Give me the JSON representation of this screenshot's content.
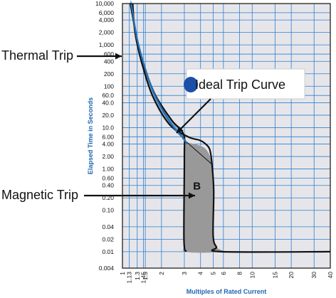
{
  "chart_data": {
    "type": "line",
    "xlabel": "Multiples of Rated Current",
    "ylabel": "Elapsed Time in Seconds",
    "x_scale": "log",
    "y_scale": "log",
    "xlim": [
      1,
      40
    ],
    "ylim": [
      0.004,
      10000
    ],
    "grid": true,
    "x_ticks": [
      {
        "value": 1,
        "label": "1"
      },
      {
        "value": 1.13,
        "label": "1.13"
      },
      {
        "value": 1.3,
        "label": "1.3"
      },
      {
        "value": 1.45,
        "label": "1.45"
      },
      {
        "value": 1.5,
        "label": "1.5"
      },
      {
        "value": 2,
        "label": "2"
      },
      {
        "value": 3,
        "label": "3"
      },
      {
        "value": 4,
        "label": "4"
      },
      {
        "value": 5,
        "label": "5"
      },
      {
        "value": 6,
        "label": "6"
      },
      {
        "value": 8,
        "label": "8"
      },
      {
        "value": 10,
        "label": "10"
      },
      {
        "value": 15,
        "label": "15"
      },
      {
        "value": 20,
        "label": "20"
      },
      {
        "value": 30,
        "label": "30"
      },
      {
        "value": 40,
        "label": "40"
      }
    ],
    "y_ticks": [
      {
        "value": 10000,
        "label": "10,000"
      },
      {
        "value": 6000,
        "label": "6,000"
      },
      {
        "value": 4000,
        "label": "4,000"
      },
      {
        "value": 2000,
        "label": "2,000"
      },
      {
        "value": 1000,
        "label": "1,000"
      },
      {
        "value": 600,
        "label": "600"
      },
      {
        "value": 400,
        "label": "400"
      },
      {
        "value": 200,
        "label": "200"
      },
      {
        "value": 100,
        "label": "100"
      },
      {
        "value": 60,
        "label": "60.0"
      },
      {
        "value": 40,
        "label": "40.0"
      },
      {
        "value": 20,
        "label": "20.0"
      },
      {
        "value": 10,
        "label": "10.0"
      },
      {
        "value": 6,
        "label": "6.00"
      },
      {
        "value": 4,
        "label": "4.00"
      },
      {
        "value": 2,
        "label": "2.00"
      },
      {
        "value": 1,
        "label": "1.00"
      },
      {
        "value": 0.6,
        "label": "0.60"
      },
      {
        "value": 0.4,
        "label": "0.40"
      },
      {
        "value": 0.2,
        "label": "0.20"
      },
      {
        "value": 0.1,
        "label": "0.10"
      },
      {
        "value": 0.04,
        "label": "0.04"
      },
      {
        "value": 0.02,
        "label": "0.02"
      },
      {
        "value": 0.01,
        "label": "0.01"
      },
      {
        "value": 0.004,
        "label": "0.004"
      }
    ],
    "regions": [
      {
        "label": "",
        "fill": "#7aaedc",
        "points": [
          [
            1.2,
            10000
          ],
          [
            1.25,
            2000
          ],
          [
            1.4,
            400
          ],
          [
            1.7,
            60
          ],
          [
            2.3,
            12
          ],
          [
            2.9,
            5.5
          ],
          [
            3.05,
            4.5
          ],
          [
            2.95,
            7
          ],
          [
            2.4,
            15
          ],
          [
            1.8,
            60
          ],
          [
            1.5,
            250
          ],
          [
            1.32,
            1000
          ],
          [
            1.15,
            10000
          ]
        ]
      },
      {
        "label": "B",
        "fill": "#999999",
        "points": [
          [
            3.05,
            4.5
          ],
          [
            4.3,
            3.2
          ],
          [
            4.9,
            1.3
          ],
          [
            5.05,
            0.3
          ],
          [
            5.0,
            0.025
          ],
          [
            5.3,
            0.013
          ],
          [
            5.8,
            0.01
          ],
          [
            3.1,
            0.01
          ],
          [
            2.98,
            0.02
          ],
          [
            3.0,
            2.0
          ]
        ]
      }
    ],
    "boundary_upper": [
      [
        1.2,
        10000
      ],
      [
        1.25,
        2000
      ],
      [
        1.4,
        400
      ],
      [
        1.7,
        60
      ],
      [
        2.3,
        12
      ],
      [
        3.2,
        6
      ],
      [
        3.9,
        5
      ],
      [
        4.3,
        4.2
      ],
      [
        4.7,
        3.0
      ],
      [
        4.9,
        1.3
      ],
      [
        5.05,
        0.3
      ],
      [
        5.0,
        0.025
      ],
      [
        5.3,
        0.013
      ],
      [
        5.8,
        0.01
      ],
      [
        40,
        0.01
      ]
    ],
    "boundary_lower": [
      [
        1.15,
        10000
      ],
      [
        1.32,
        1000
      ],
      [
        1.5,
        250
      ],
      [
        1.8,
        60
      ],
      [
        2.4,
        15
      ],
      [
        2.95,
        7
      ],
      [
        3.0,
        2.0
      ],
      [
        2.98,
        0.02
      ],
      [
        3.1,
        0.01
      ]
    ],
    "series": [
      {
        "name": "Ideal Trip Curve",
        "color": "#2a6db0",
        "points": [
          [
            1.17,
            10000
          ],
          [
            1.29,
            1500
          ],
          [
            1.48,
            300
          ],
          [
            1.78,
            60
          ],
          [
            2.35,
            13
          ],
          [
            2.95,
            5.5
          ],
          [
            3.15,
            4.0
          ]
        ]
      }
    ],
    "annotations": [
      {
        "text": "Thermal Trip",
        "arrow_to": [
          1.45,
          900
        ]
      },
      {
        "text": "Ideal Trip Curve",
        "arrow_to": [
          2.5,
          8
        ]
      },
      {
        "text": "Magnetic Trip",
        "arrow_to": [
          3.05,
          0.3
        ]
      }
    ]
  }
}
